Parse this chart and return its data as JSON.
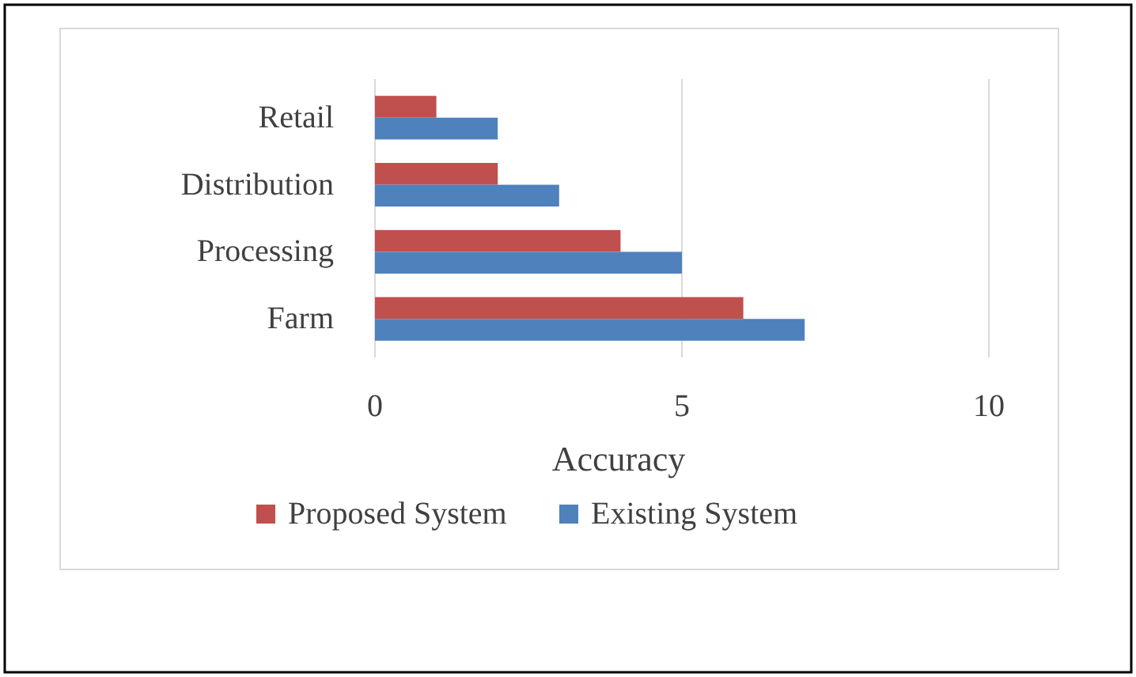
{
  "chart_data": {
    "type": "bar",
    "orientation": "horizontal",
    "xlabel": "Accuracy",
    "categories": [
      "Retail",
      "Distribution",
      "Processing",
      "Farm"
    ],
    "series": [
      {
        "name": "Proposed System",
        "color": "#c0504d",
        "values": [
          1,
          2,
          4,
          6
        ]
      },
      {
        "name": "Existing System",
        "color": "#4f81bd",
        "values": [
          2,
          3,
          5,
          7
        ]
      }
    ],
    "xlim": [
      0,
      10
    ],
    "xticks": [
      0,
      5,
      10
    ],
    "grid": "x",
    "legend": "bottom"
  }
}
